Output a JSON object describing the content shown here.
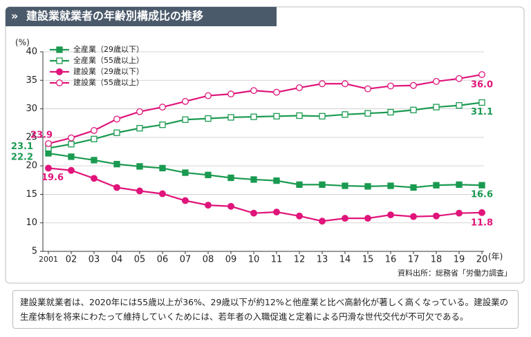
{
  "title": "建設業就業者の年齢別構成比の推移",
  "chart_data": {
    "type": "line",
    "y_unit": "(%)",
    "x_unit": "(年)",
    "categories": [
      "2001",
      "02",
      "03",
      "04",
      "05",
      "06",
      "07",
      "08",
      "09",
      "10",
      "11",
      "12",
      "13",
      "14",
      "15",
      "16",
      "17",
      "18",
      "19",
      "20"
    ],
    "ylim": [
      5,
      40
    ],
    "yticks": [
      5,
      10,
      15,
      20,
      25,
      30,
      35,
      40
    ],
    "grid": true,
    "legend": "top-left",
    "series": [
      {
        "name": "全産業（29歳以下）",
        "color": "#1a9a50",
        "marker": "square",
        "filled": true,
        "values": [
          22.2,
          21.6,
          21.0,
          20.3,
          19.9,
          19.6,
          18.8,
          18.4,
          17.9,
          17.6,
          17.4,
          16.7,
          16.7,
          16.5,
          16.4,
          16.5,
          16.2,
          16.6,
          16.7,
          16.6
        ],
        "value_labels": [
          "22.2",
          null,
          null,
          null,
          null,
          null,
          null,
          null,
          null,
          null,
          null,
          null,
          null,
          null,
          null,
          null,
          null,
          null,
          null,
          "16.6"
        ]
      },
      {
        "name": "全産業（55歳以上）",
        "color": "#1a9a50",
        "marker": "square",
        "filled": false,
        "values": [
          23.1,
          23.8,
          24.7,
          25.8,
          26.6,
          27.2,
          28.1,
          28.3,
          28.5,
          28.6,
          28.7,
          28.8,
          28.7,
          29.0,
          29.2,
          29.4,
          29.8,
          30.3,
          30.6,
          31.1
        ],
        "value_labels": [
          "23.1",
          null,
          null,
          null,
          null,
          null,
          null,
          null,
          null,
          null,
          null,
          null,
          null,
          null,
          null,
          null,
          null,
          null,
          null,
          "31.1"
        ]
      },
      {
        "name": "建設業（29歳以下）",
        "color": "#e0147a",
        "marker": "circle",
        "filled": true,
        "values": [
          19.6,
          19.2,
          17.8,
          16.2,
          15.6,
          15.1,
          13.9,
          13.1,
          12.9,
          11.7,
          11.9,
          11.2,
          10.3,
          10.8,
          10.8,
          11.4,
          11.1,
          11.2,
          11.7,
          11.8
        ],
        "value_labels": [
          "19.6",
          null,
          null,
          null,
          null,
          null,
          null,
          null,
          null,
          null,
          null,
          null,
          null,
          null,
          null,
          null,
          null,
          null,
          null,
          "11.8"
        ]
      },
      {
        "name": "建設業（55歳以上）",
        "color": "#e0147a",
        "marker": "circle",
        "filled": false,
        "values": [
          23.9,
          24.9,
          26.2,
          28.2,
          29.5,
          30.3,
          31.3,
          32.3,
          32.6,
          33.2,
          32.9,
          33.7,
          34.4,
          34.4,
          33.5,
          34.0,
          34.1,
          34.8,
          35.3,
          36.0
        ],
        "value_labels": [
          "23.9",
          null,
          null,
          null,
          null,
          null,
          null,
          null,
          null,
          null,
          null,
          null,
          null,
          null,
          null,
          null,
          null,
          null,
          null,
          "36.0"
        ]
      }
    ]
  },
  "source": "資料出所：総務省「労働力調査」",
  "caption": "建設業就業者は、2020年には55歳以上が36%、29歳以下が約12%と他産業と比べ高齢化が著しく高くなっている。建設業の生産体制を将来にわたって維持していくためには、若年者の入職促進と定着による円滑な世代交代が不可欠である。"
}
